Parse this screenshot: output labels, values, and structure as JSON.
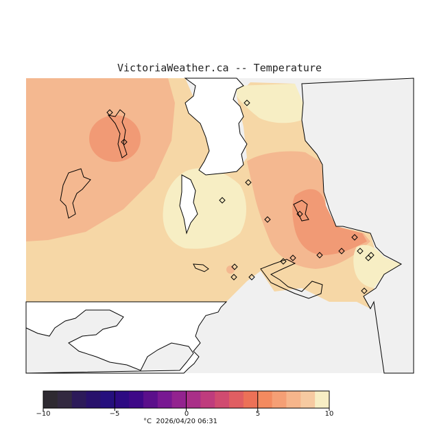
{
  "title": "VictoriaWeather.ca -- Temperature",
  "colors": {
    "land_no_data": "#f0f0f0",
    "water": "#ffffff",
    "coastline": "#000000",
    "temp_10": "#f7eec4",
    "temp_9": "#f6d7a6",
    "temp_8": "#f4b890",
    "temp_7": "#f19a75"
  },
  "colorbar": {
    "min": -10,
    "max": 10,
    "tick_labels": [
      "−10",
      "−5",
      "0",
      "5",
      "10"
    ],
    "tick_values": [
      -10,
      -5,
      0,
      5,
      10
    ],
    "swatches": [
      "#2e2a31",
      "#322940",
      "#2c1a59",
      "#28116b",
      "#250f7d",
      "#2d0a82",
      "#3e0887",
      "#5b0f8b",
      "#781892",
      "#93238f",
      "#a92f88",
      "#bf3c7d",
      "#d04b70",
      "#e05e62",
      "#ec7157",
      "#f38a5f",
      "#f59f75",
      "#f6b58b",
      "#f6caa1",
      "#f7eec4"
    ]
  },
  "footer": {
    "unit": "°C",
    "timestamp": "2026/04/20 06:31"
  },
  "station_marker": "diamond"
}
